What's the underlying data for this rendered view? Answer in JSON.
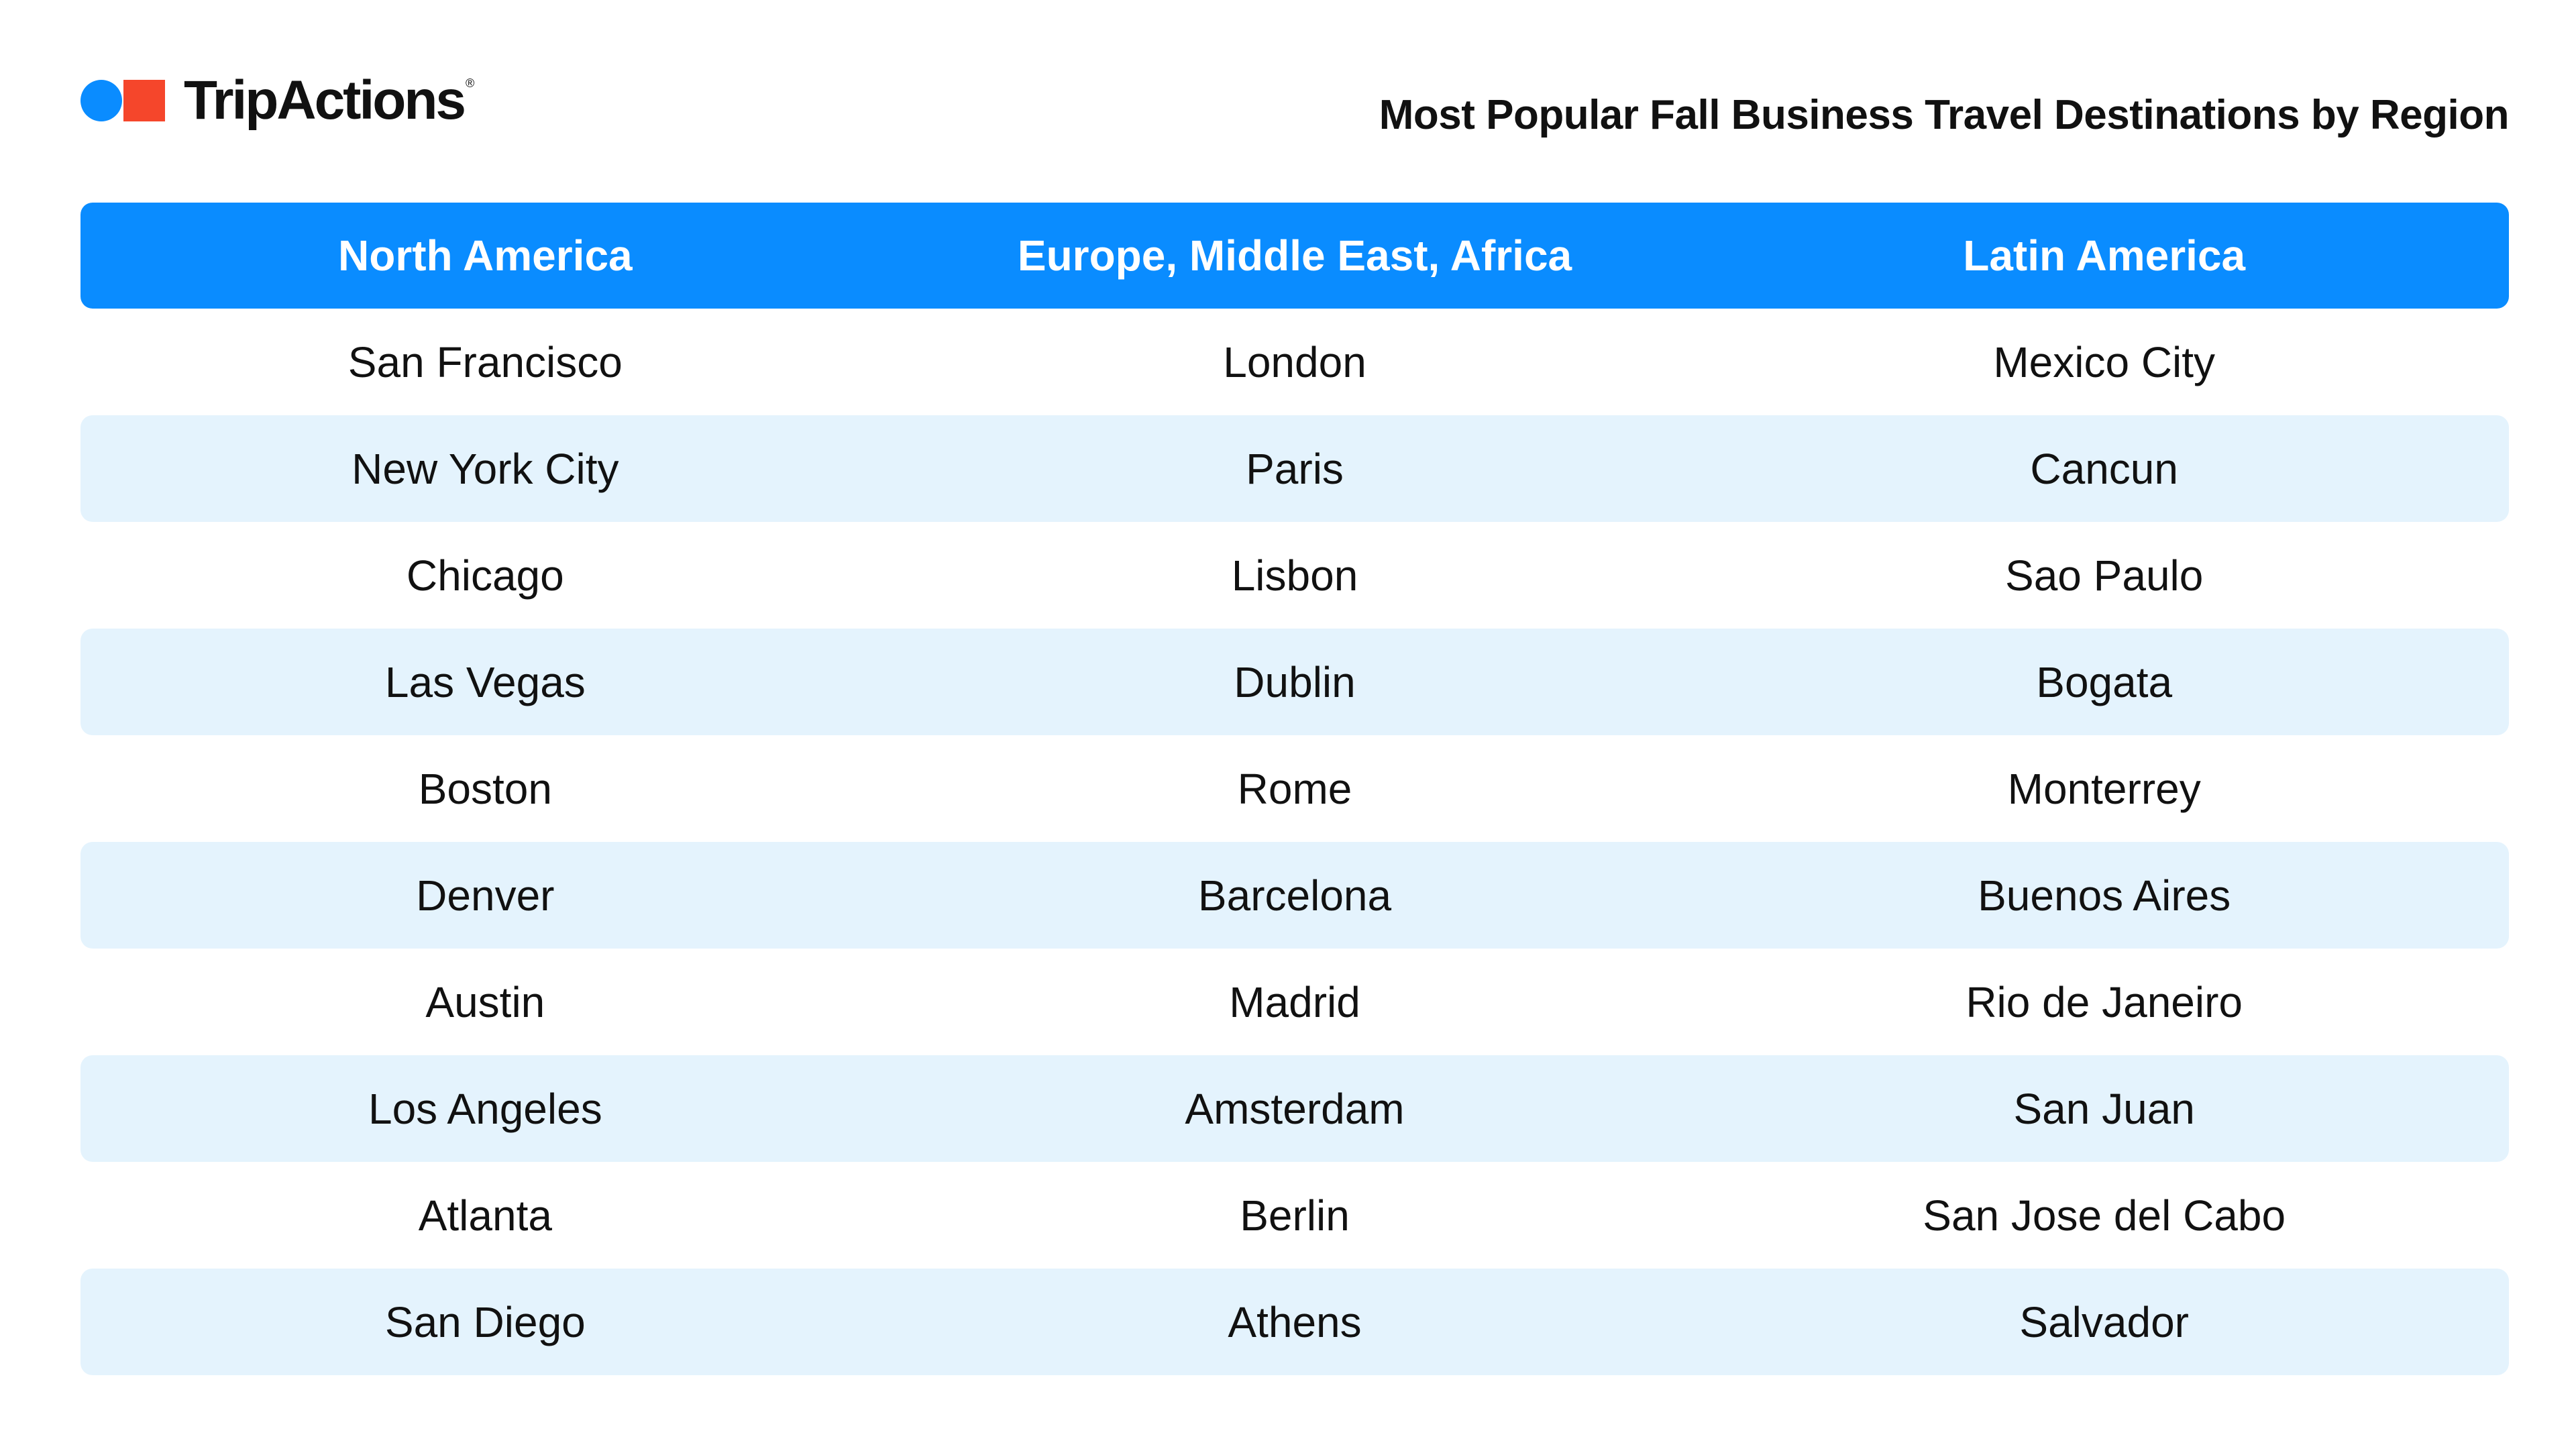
{
  "brand": {
    "name": "TripActions",
    "trademark": "®",
    "colors": {
      "circle": "#0a8cff",
      "square": "#f5462b"
    }
  },
  "title": "Most Popular Fall Business Travel Destinations by Region",
  "table": {
    "headers": [
      "North America",
      "Europe, Middle East, Africa",
      "Latin America"
    ],
    "rows": [
      [
        "San Francisco",
        "London",
        "Mexico City"
      ],
      [
        "New York City",
        "Paris",
        "Cancun"
      ],
      [
        "Chicago",
        "Lisbon",
        "Sao Paulo"
      ],
      [
        "Las Vegas",
        "Dublin",
        "Bogata"
      ],
      [
        "Boston",
        "Rome",
        "Monterrey"
      ],
      [
        "Denver",
        "Barcelona",
        "Buenos Aires"
      ],
      [
        "Austin",
        "Madrid",
        "Rio de Janeiro"
      ],
      [
        "Los Angeles",
        "Amsterdam",
        "San Juan"
      ],
      [
        "Atlanta",
        "Berlin",
        "San Jose del Cabo"
      ],
      [
        "San Diego",
        "Athens",
        "Salvador"
      ]
    ]
  },
  "colors": {
    "header_bg": "#0a8cff",
    "alt_row_bg": "#e4f3fd"
  }
}
